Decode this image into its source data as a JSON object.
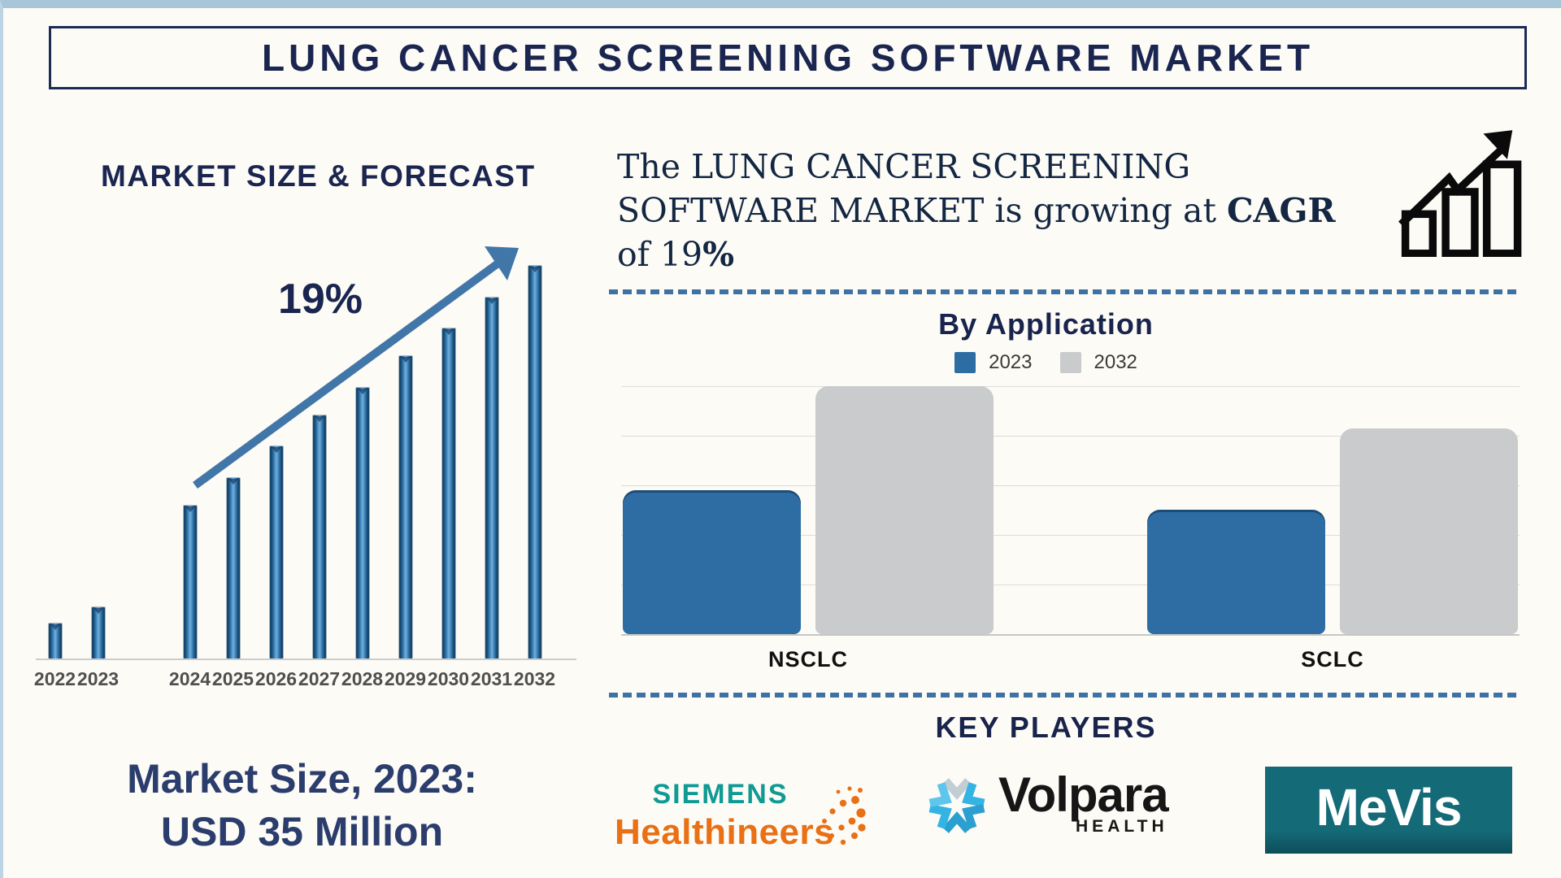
{
  "frame": {
    "border_color": "#a7c6da"
  },
  "header": {
    "title": "LUNG CANCER SCREENING SOFTWARE MARKET"
  },
  "left_panel": {
    "heading": "MARKET SIZE & FORECAST",
    "growth_annotation": "19%",
    "market_size_caption_line1": "Market Size, 2023:",
    "market_size_caption_line2": "USD 35 Million"
  },
  "right_panel": {
    "description": {
      "text_before": "The LUNG CANCER SCREENING SOFTWARE MARKET is growing at ",
      "bold_cagr": "CAGR",
      "text_middle": " of 19",
      "bold_percent": "%"
    },
    "growth_icon": "bar-chart-growth-icon",
    "by_application_title": "By Application",
    "key_players_title": "KEY PLAYERS",
    "logos": [
      {
        "name": "siemens-healthineers",
        "line1": "SIEMENS",
        "line2": "Healthineers",
        "teal": "#0f9a94",
        "orange": "#e97014"
      },
      {
        "name": "volpara-health",
        "wordmark": "Volpara",
        "subtext": "HEALTH",
        "icon_color": "#35b4e4",
        "text_color": "#161616"
      },
      {
        "name": "mevis",
        "wordmark": "MeVis",
        "bg_color": "#156a78",
        "text_color": "#ffffff"
      }
    ]
  },
  "chart_data": [
    {
      "type": "bar",
      "name": "market-size-forecast",
      "title": "MARKET SIZE & FORECAST",
      "categories": [
        "2022",
        "2023",
        "2024",
        "2025",
        "2026",
        "2027",
        "2028",
        "2029",
        "2030",
        "2031",
        "2032"
      ],
      "values_pct_of_max": [
        9,
        13,
        39,
        46,
        54,
        62,
        69,
        77,
        84,
        92,
        100
      ],
      "gap_after_index": 1,
      "annotation": "19%",
      "anchor_value": "2023 = USD 35 Million",
      "bar_color": "#2e6da4",
      "ylabel": "",
      "y_axis_labeled": false
    },
    {
      "type": "grouped_bar",
      "name": "by-application",
      "title": "By Application",
      "categories": [
        "NSCLC",
        "SCLC"
      ],
      "series": [
        {
          "name": "2023",
          "color": "#2e6da4",
          "values_pct_of_max": [
            58,
            50
          ]
        },
        {
          "name": "2032",
          "color": "#c9cbcd",
          "values_pct_of_max": [
            100,
            83
          ]
        }
      ],
      "legend_position": "top-center",
      "gridlines": 5,
      "y_axis_labeled": false
    }
  ]
}
